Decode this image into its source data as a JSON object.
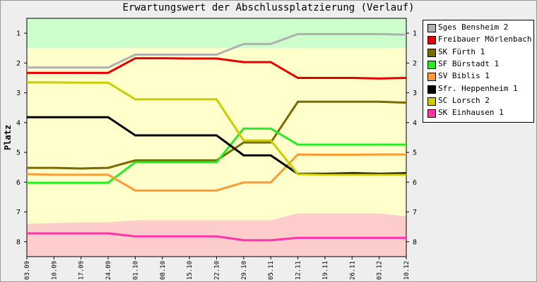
{
  "chart_data": {
    "type": "line",
    "title": "Erwartungswert der Abschlussplatzierung (Verlauf)",
    "ylabel": "Platz",
    "xlabel": "",
    "y_ticks": [
      1,
      2,
      3,
      4,
      5,
      6,
      7,
      8
    ],
    "ylim": [
      0.5,
      8.5
    ],
    "y_inverted": true,
    "categories": [
      "03.09",
      "10.09",
      "17.09",
      "24.09",
      "01.10",
      "08.10",
      "15.10",
      "22.10",
      "29.10",
      "05.11",
      "12.11",
      "19.11",
      "26.11",
      "03.12",
      "10.12"
    ],
    "background_bands": [
      {
        "color": "#ccffcc",
        "to": [
          1.5,
          1.5,
          1.5,
          1.5,
          1.5,
          1.5,
          1.5,
          1.5,
          1.5,
          1.5,
          1.5,
          1.5,
          1.5,
          1.5,
          1.5
        ]
      },
      {
        "color": "#ffffcc",
        "to": [
          7.4,
          7.38,
          7.35,
          7.35,
          7.28,
          7.28,
          7.28,
          7.28,
          7.28,
          7.28,
          7.05,
          7.05,
          7.05,
          7.05,
          7.15
        ]
      },
      {
        "color": "#ffcccc",
        "to": [
          8.5,
          8.5,
          8.5,
          8.5,
          8.5,
          8.5,
          8.5,
          8.5,
          8.5,
          8.5,
          8.5,
          8.5,
          8.5,
          8.5,
          8.5
        ]
      }
    ],
    "series": [
      {
        "name": "Sges Bensheim 2",
        "color": "#b0b0b0",
        "values": [
          2.15,
          2.15,
          2.15,
          2.15,
          1.72,
          1.72,
          1.72,
          1.72,
          1.36,
          1.36,
          1.03,
          1.03,
          1.03,
          1.03,
          1.05
        ]
      },
      {
        "name": "Freibauer Mörlenbach 2",
        "color": "#e80000",
        "values": [
          2.33,
          2.33,
          2.33,
          2.33,
          1.84,
          1.84,
          1.85,
          1.85,
          1.97,
          1.97,
          2.5,
          2.5,
          2.5,
          2.52,
          2.5
        ]
      },
      {
        "name": "SK Fürth 1",
        "color": "#7a6a00",
        "values": [
          5.52,
          5.52,
          5.54,
          5.52,
          5.27,
          5.27,
          5.27,
          5.27,
          4.67,
          4.67,
          3.3,
          3.3,
          3.3,
          3.3,
          3.33
        ]
      },
      {
        "name": "SF Bürstadt 1",
        "color": "#22ee22",
        "values": [
          6.02,
          6.02,
          6.02,
          6.02,
          5.33,
          5.33,
          5.33,
          5.33,
          4.2,
          4.2,
          4.74,
          4.74,
          4.74,
          4.74,
          4.74
        ]
      },
      {
        "name": "SV Biblis 1",
        "color": "#ff9933",
        "values": [
          5.73,
          5.75,
          5.75,
          5.75,
          6.28,
          6.28,
          6.28,
          6.28,
          6.01,
          6.01,
          5.07,
          5.08,
          5.08,
          5.07,
          5.07
        ]
      },
      {
        "name": "Sfr. Heppenheim 1",
        "color": "#000000",
        "values": [
          3.82,
          3.82,
          3.82,
          3.82,
          4.43,
          4.43,
          4.43,
          4.43,
          5.1,
          5.1,
          5.72,
          5.72,
          5.7,
          5.72,
          5.7
        ]
      },
      {
        "name": "SC Lorsch 2",
        "color": "#cccc00",
        "values": [
          2.65,
          2.65,
          2.66,
          2.66,
          3.22,
          3.22,
          3.22,
          3.22,
          4.6,
          4.6,
          5.73,
          5.75,
          5.75,
          5.75,
          5.75
        ]
      },
      {
        "name": "SK Einhausen 1",
        "color": "#ff33aa",
        "values": [
          7.72,
          7.72,
          7.72,
          7.72,
          7.82,
          7.82,
          7.82,
          7.82,
          7.95,
          7.95,
          7.87,
          7.87,
          7.87,
          7.87,
          7.87
        ]
      }
    ]
  }
}
